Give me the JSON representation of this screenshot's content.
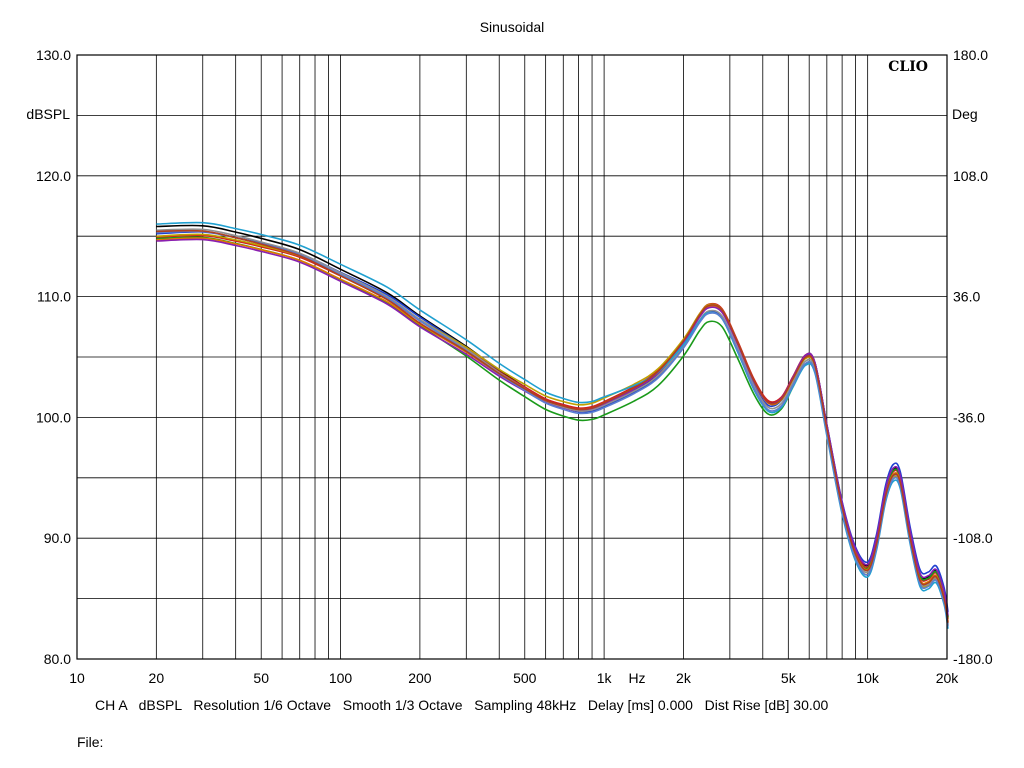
{
  "chart_data": {
    "type": "line",
    "title": "Sinusoidal",
    "logo": "CLIO",
    "ylabel_left": "dBSPL",
    "ylabel_right": "Deg",
    "xlabel": "Hz",
    "x_scale": "log",
    "xlim": [
      10,
      20000
    ],
    "ylim": [
      80,
      130
    ],
    "y2lim": [
      -180,
      180
    ],
    "grid": true,
    "y_ticks": [
      "130.0",
      "120.0",
      "110.0",
      "100.0",
      "90.0",
      "80.0"
    ],
    "y2_ticks": [
      "180.0",
      "108.0",
      "36.0",
      "-36.0",
      "-108.0",
      "-180.0"
    ],
    "x_ticks": [
      {
        "value": 10,
        "label": "10"
      },
      {
        "value": 20,
        "label": "20"
      },
      {
        "value": 50,
        "label": "50"
      },
      {
        "value": 100,
        "label": "100"
      },
      {
        "value": 200,
        "label": "200"
      },
      {
        "value": 500,
        "label": "500"
      },
      {
        "value": 1000,
        "label": "1k"
      },
      {
        "value": 2000,
        "label": "2k"
      },
      {
        "value": 5000,
        "label": "5k"
      },
      {
        "value": 10000,
        "label": "10k"
      },
      {
        "value": 20000,
        "label": "20k"
      }
    ],
    "base_curve": [
      [
        20,
        115.2
      ],
      [
        30,
        115.3
      ],
      [
        40,
        114.8
      ],
      [
        50,
        114.3
      ],
      [
        70,
        113.4
      ],
      [
        100,
        111.8
      ],
      [
        150,
        109.9
      ],
      [
        200,
        108.0
      ],
      [
        300,
        105.6
      ],
      [
        400,
        103.7
      ],
      [
        500,
        102.4
      ],
      [
        600,
        101.4
      ],
      [
        700,
        100.9
      ],
      [
        800,
        100.6
      ],
      [
        900,
        100.7
      ],
      [
        1000,
        101.1
      ],
      [
        1300,
        102.3
      ],
      [
        1600,
        103.6
      ],
      [
        2000,
        106.1
      ],
      [
        2300,
        108.2
      ],
      [
        2500,
        109.0
      ],
      [
        2800,
        108.6
      ],
      [
        3200,
        106.0
      ],
      [
        3700,
        102.8
      ],
      [
        4200,
        101.0
      ],
      [
        4700,
        101.3
      ],
      [
        5200,
        103.0
      ],
      [
        5800,
        104.8
      ],
      [
        6300,
        104.2
      ],
      [
        7000,
        99.0
      ],
      [
        8000,
        92.5
      ],
      [
        9000,
        88.6
      ],
      [
        10000,
        87.3
      ],
      [
        10800,
        89.5
      ],
      [
        11700,
        93.5
      ],
      [
        12500,
        95.2
      ],
      [
        13300,
        94.6
      ],
      [
        14500,
        90.0
      ],
      [
        15800,
        86.5
      ],
      [
        17000,
        86.3
      ],
      [
        18200,
        86.8
      ],
      [
        19500,
        85.0
      ],
      [
        21000,
        83.0
      ]
    ],
    "series": [
      {
        "color": "#000000",
        "offsets": [
          0.6,
          0.4,
          -0.1,
          0.2,
          0.5
        ]
      },
      {
        "color": "#1f3fd0",
        "offsets": [
          0.0,
          0.3,
          -0.2,
          -0.3,
          0.9
        ]
      },
      {
        "color": "#d02020",
        "offsets": [
          -0.3,
          0.0,
          0.2,
          0.4,
          0.3
        ]
      },
      {
        "color": "#1a9a1a",
        "offsets": [
          -0.4,
          -0.4,
          -0.9,
          -1.1,
          0.4
        ]
      },
      {
        "color": "#c0a000",
        "offsets": [
          -0.2,
          0.1,
          0.5,
          0.3,
          -0.2
        ]
      },
      {
        "color": "#e07800",
        "offsets": [
          -0.5,
          -0.3,
          0.1,
          0.2,
          0.1
        ]
      },
      {
        "color": "#8a1fb0",
        "offsets": [
          -0.6,
          -0.5,
          0.0,
          0.1,
          0.6
        ]
      },
      {
        "color": "#909090",
        "offsets": [
          0.3,
          0.1,
          -0.1,
          -0.2,
          -0.1
        ]
      },
      {
        "color": "#20a0d0",
        "offsets": [
          0.8,
          0.9,
          0.6,
          -0.5,
          -0.5
        ]
      },
      {
        "color": "#5a7fd0",
        "offsets": [
          0.1,
          0.0,
          -0.3,
          -0.4,
          -0.3
        ]
      },
      {
        "color": "#b04020",
        "offsets": [
          0.2,
          -0.2,
          0.1,
          0.3,
          0.0
        ]
      }
    ]
  },
  "footer": {
    "channel": "CH A",
    "unit": "dBSPL",
    "resolution": "Resolution 1/6 Octave",
    "smooth": "Smooth 1/3 Octave",
    "sampling": "Sampling 48kHz",
    "delay": "Delay [ms] 0.000",
    "dist_rise": "Dist Rise [dB] 30.00"
  },
  "file_label": "File:"
}
